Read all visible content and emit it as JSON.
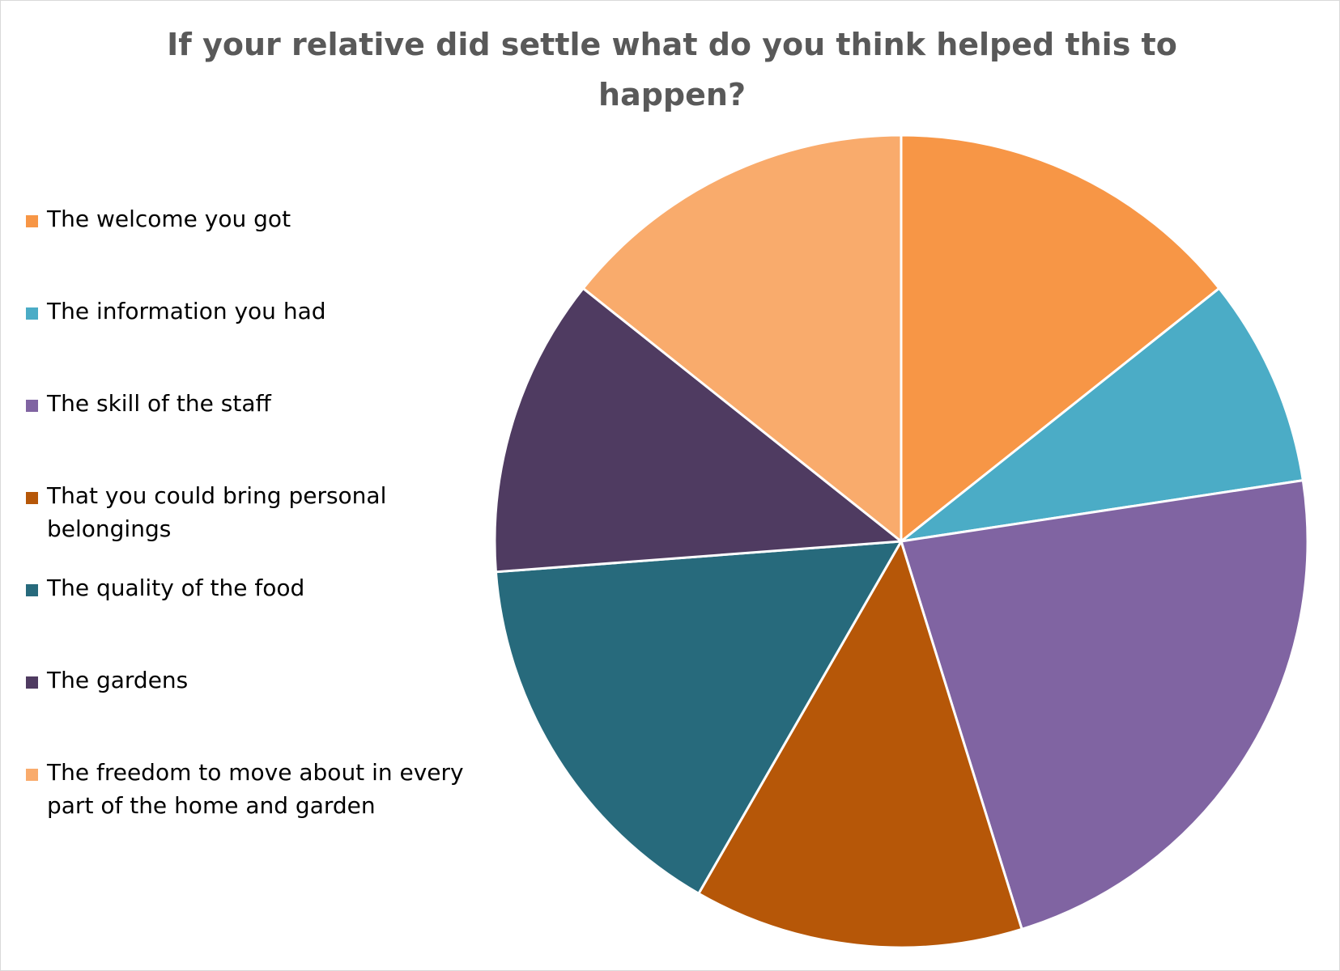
{
  "chart_data": {
    "type": "pie",
    "title": "If your relative did settle what do you think helped this to happen?",
    "categories": [
      "The welcome you got",
      "The information you had",
      "The skill of the staff",
      "That you could bring personal belongings",
      "The quality of the food",
      "The gardens",
      "The freedom to move about in every part of the home and garden"
    ],
    "values": [
      14.3,
      8.3,
      22.6,
      13.1,
      15.5,
      11.9,
      14.3
    ],
    "colors": [
      "#F79646",
      "#4BACC6",
      "#8064A2",
      "#B65708",
      "#276A7C",
      "#4F3B61",
      "#F9AB6C"
    ],
    "start_angle_deg": 0,
    "direction": "clockwise",
    "legend": "left",
    "slice_border": "#ffffff"
  }
}
